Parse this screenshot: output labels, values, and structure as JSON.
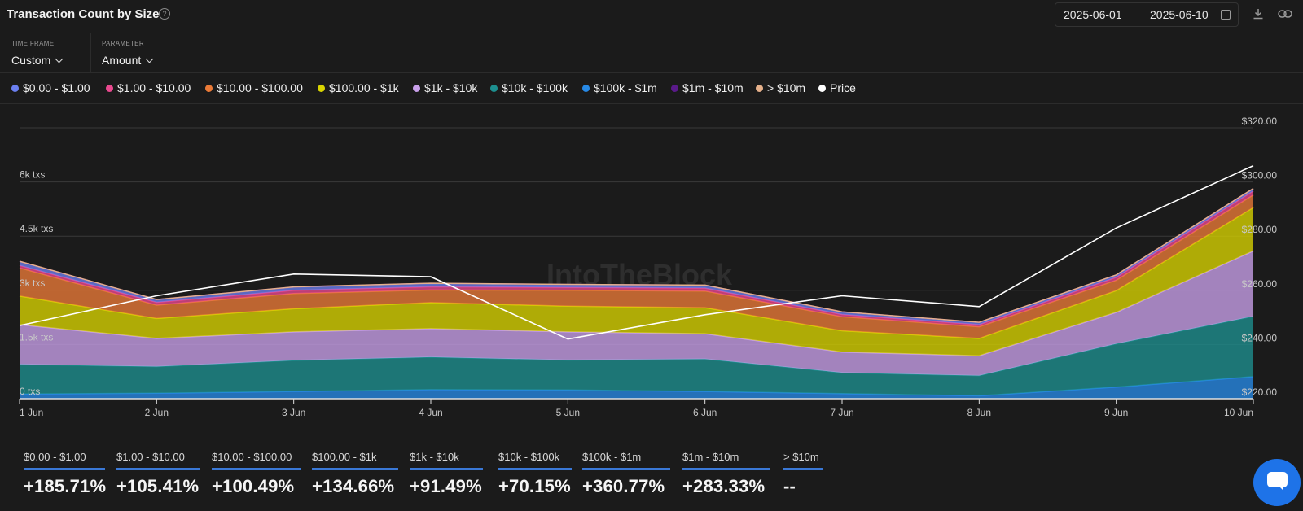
{
  "header": {
    "title": "Transaction Count by Size",
    "date_from": "2025-06-01",
    "date_sep": "—",
    "date_to": "2025-06-10"
  },
  "controls": {
    "time_frame_label": "TIME FRAME",
    "time_frame_value": "Custom",
    "parameter_label": "PARAMETER",
    "parameter_value": "Amount"
  },
  "legend": [
    {
      "label": "$0.00 - $1.00",
      "color": "#6b7ff0"
    },
    {
      "label": "$1.00 - $10.00",
      "color": "#e9498f"
    },
    {
      "label": "$10.00 - $100.00",
      "color": "#ea7a37"
    },
    {
      "label": "$100.00 - $1k",
      "color": "#d9d400"
    },
    {
      "label": "$1k - $10k",
      "color": "#c9a0ea"
    },
    {
      "label": "$10k - $100k",
      "color": "#1d8f8f"
    },
    {
      "label": "$100k - $1m",
      "color": "#2789e6"
    },
    {
      "label": "$1m - $10m",
      "color": "#5a1a8a"
    },
    {
      "label": "> $10m",
      "color": "#e5b08a"
    },
    {
      "label": "Price",
      "color": "#ffffff"
    }
  ],
  "chart_data": {
    "type": "area",
    "stacked": true,
    "x": [
      "1 Jun",
      "2 Jun",
      "3 Jun",
      "4 Jun",
      "5 Jun",
      "6 Jun",
      "7 Jun",
      "8 Jun",
      "9 Jun",
      "10 Jun"
    ],
    "y_left": {
      "ticks": [
        "0 txs",
        "1.5k txs",
        "3k txs",
        "4.5k txs",
        "6k txs"
      ],
      "ylim": [
        0,
        7500
      ]
    },
    "y_right": {
      "ticks": [
        "$220.00",
        "$240.00",
        "$260.00",
        "$280.00",
        "$300.00",
        "$320.00"
      ],
      "ylim": [
        220,
        320
      ]
    },
    "watermark": "IntoTheBlock",
    "grid": true,
    "series": [
      {
        "name": "$100k - $1m",
        "color": "#2789e6",
        "values": [
          130,
          150,
          200,
          250,
          240,
          200,
          140,
          80,
          320,
          610
        ]
      },
      {
        "name": "$10k - $100k",
        "color": "#1d8f8f",
        "values": [
          820,
          740,
          860,
          900,
          830,
          900,
          580,
          560,
          1200,
          1670
        ]
      },
      {
        "name": "$1k - $10k",
        "color": "#c9a0ea",
        "values": [
          1100,
          780,
          790,
          790,
          780,
          700,
          570,
          550,
          870,
          1810
        ]
      },
      {
        "name": "$100.00 - $1k",
        "color": "#d9d400",
        "values": [
          790,
          550,
          640,
          720,
          710,
          720,
          590,
          480,
          600,
          1200
        ]
      },
      {
        "name": "$10.00 - $100.00",
        "color": "#ea7a37",
        "values": [
          780,
          370,
          420,
          350,
          440,
          460,
          390,
          320,
          290,
          350
        ]
      },
      {
        "name": "$1.00 - $10.00",
        "color": "#e9498f",
        "values": [
          70,
          80,
          90,
          90,
          80,
          80,
          60,
          60,
          80,
          110
        ]
      },
      {
        "name": "$0.00 - $1.00",
        "color": "#6b7ff0",
        "values": [
          110,
          70,
          90,
          90,
          80,
          80,
          70,
          60,
          60,
          60
        ]
      },
      {
        "name": "$1m - $10m",
        "color": "#5a1a8a",
        "values": [
          5,
          5,
          5,
          5,
          5,
          5,
          5,
          5,
          8,
          10
        ]
      },
      {
        "name": "> $10m",
        "color": "#e5b08a",
        "values": [
          0,
          0,
          0,
          0,
          0,
          0,
          0,
          0,
          0,
          0
        ]
      }
    ],
    "price": {
      "name": "Price",
      "color": "#ffffff",
      "values": [
        247,
        258,
        266,
        265,
        242,
        251,
        258,
        254,
        283,
        306
      ]
    }
  },
  "stats": [
    {
      "label": "$0.00 - $1.00",
      "value": "+185.71%"
    },
    {
      "label": "$1.00 - $10.00",
      "value": "+105.41%"
    },
    {
      "label": "$10.00 - $100.00",
      "value": "+100.49%"
    },
    {
      "label": "$100.00 - $1k",
      "value": "+134.66%"
    },
    {
      "label": "$1k - $10k",
      "value": "+91.49%"
    },
    {
      "label": "$10k - $100k",
      "value": "+70.15%"
    },
    {
      "label": "$100k - $1m",
      "value": "+360.77%"
    },
    {
      "label": "$1m - $10m",
      "value": "+283.33%"
    },
    {
      "label": "> $10m",
      "value": "--"
    }
  ]
}
